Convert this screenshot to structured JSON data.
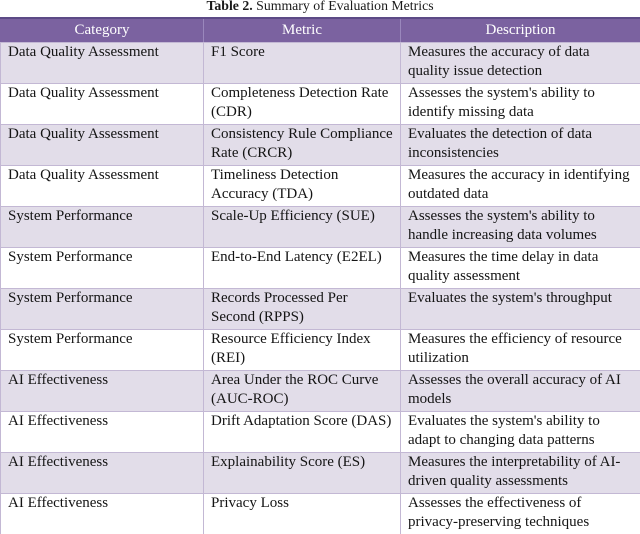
{
  "caption": {
    "label": "Table 2.",
    "text": " Summary of Evaluation Metrics"
  },
  "table": {
    "headers": [
      "Category",
      "Metric",
      "Description"
    ],
    "rows": [
      {
        "category": "Data Quality Assessment",
        "metric": "F1 Score",
        "description": "Measures the accuracy of data quality issue detection"
      },
      {
        "category": "Data Quality Assessment",
        "metric": "Completeness Detection Rate (CDR)",
        "description": "Assesses the system's ability to identify missing data"
      },
      {
        "category": "Data Quality Assessment",
        "metric": "Consistency Rule Compliance Rate (CRCR)",
        "description": "Evaluates the detection of data inconsistencies"
      },
      {
        "category": "Data Quality Assessment",
        "metric": "Timeliness Detection Accuracy (TDA)",
        "description": "Measures the accuracy in identifying outdated data"
      },
      {
        "category": "System Performance",
        "metric": "Scale-Up Efficiency (SUE)",
        "description": "Assesses the system's ability to handle increasing data volumes"
      },
      {
        "category": "System Performance",
        "metric": "End-to-End Latency (E2EL)",
        "description": "Measures the time delay in data quality assessment"
      },
      {
        "category": "System Performance",
        "metric": "Records Processed Per Second (RPPS)",
        "description": "Evaluates the system's throughput"
      },
      {
        "category": "System Performance",
        "metric": "Resource Efficiency Index (REI)",
        "description": "Measures the efficiency of resource utilization"
      },
      {
        "category": "AI Effectiveness",
        "metric": "Area Under the ROC Curve (AUC-ROC)",
        "description": "Assesses the overall accuracy of AI models"
      },
      {
        "category": "AI Effectiveness",
        "metric": "Drift Adaptation Score (DAS)",
        "description": "Evaluates the system's ability to adapt to changing data patterns"
      },
      {
        "category": "AI Effectiveness",
        "metric": "Explainability Score (ES)",
        "description": "Measures the interpretability of AI-driven quality assessments"
      },
      {
        "category": "AI Effectiveness",
        "metric": "Privacy Loss",
        "description": "Assesses the effectiveness of privacy-preserving techniques"
      }
    ]
  },
  "colors": {
    "header_background": "#7b62a0",
    "header_text": "#ffffff",
    "alternate_row_background": "#e2dde9",
    "row_background": "#ffffff",
    "border": "#c3b8d4",
    "body_text": "#141414"
  }
}
